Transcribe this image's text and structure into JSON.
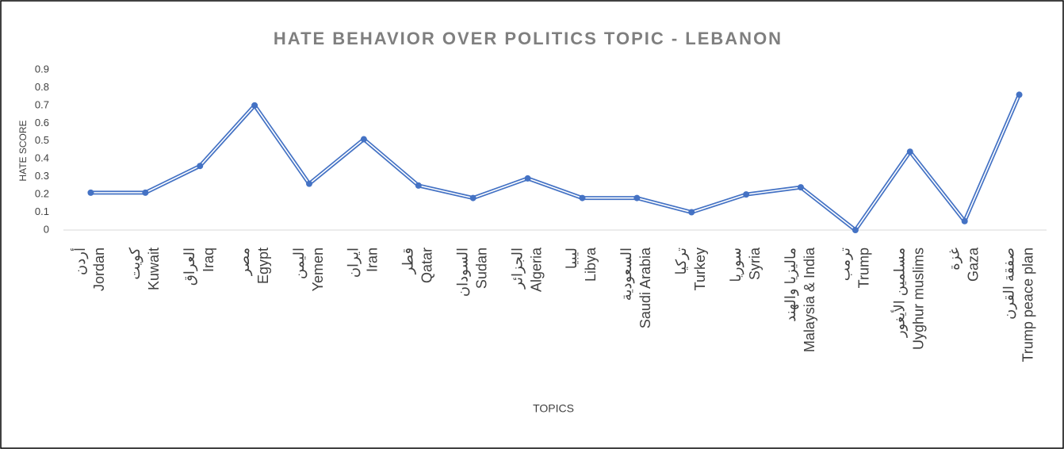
{
  "chart_data": {
    "type": "line",
    "title": "HATE BEHAVIOR OVER POLITICS TOPIC - LEBANON",
    "x_label": "TOPICS",
    "y_label": "HATE SCORE",
    "categories": [
      [
        "أردن",
        "Jordan"
      ],
      [
        "كويت",
        "Kuwait"
      ],
      [
        "العراق",
        "Iraq"
      ],
      [
        "مصر",
        "Egypt"
      ],
      [
        "اليمن",
        "Yemen"
      ],
      [
        "ايران",
        "Iran"
      ],
      [
        "قطر",
        "Qatar"
      ],
      [
        "السودان",
        "Sudan"
      ],
      [
        "الجزائر",
        "Algeria"
      ],
      [
        "ليبيا",
        "Libya"
      ],
      [
        "السعودية",
        "Saudi Arabia"
      ],
      [
        "تركيا",
        "Turkey"
      ],
      [
        "سوريا",
        "Syria"
      ],
      [
        "ماليزيا والهند",
        "Malaysia & India"
      ],
      [
        "ترمب",
        "Trump"
      ],
      [
        "مسلمين الأيغور",
        "Uyghur muslims"
      ],
      [
        "غزة",
        "Gaza"
      ],
      [
        "صفقة القرن",
        "Trump peace plan"
      ]
    ],
    "values": [
      0.21,
      0.21,
      0.36,
      0.7,
      0.26,
      0.51,
      0.25,
      0.18,
      0.29,
      0.18,
      0.18,
      0.1,
      0.2,
      0.24,
      0.0,
      0.44,
      0.05,
      0.76
    ],
    "color": "#4472c4",
    "ylim": [
      0,
      0.9
    ],
    "yticks": [
      0,
      0.1,
      0.2,
      0.3,
      0.4,
      0.5,
      0.6,
      0.7,
      0.8,
      0.9
    ],
    "grid": false
  }
}
